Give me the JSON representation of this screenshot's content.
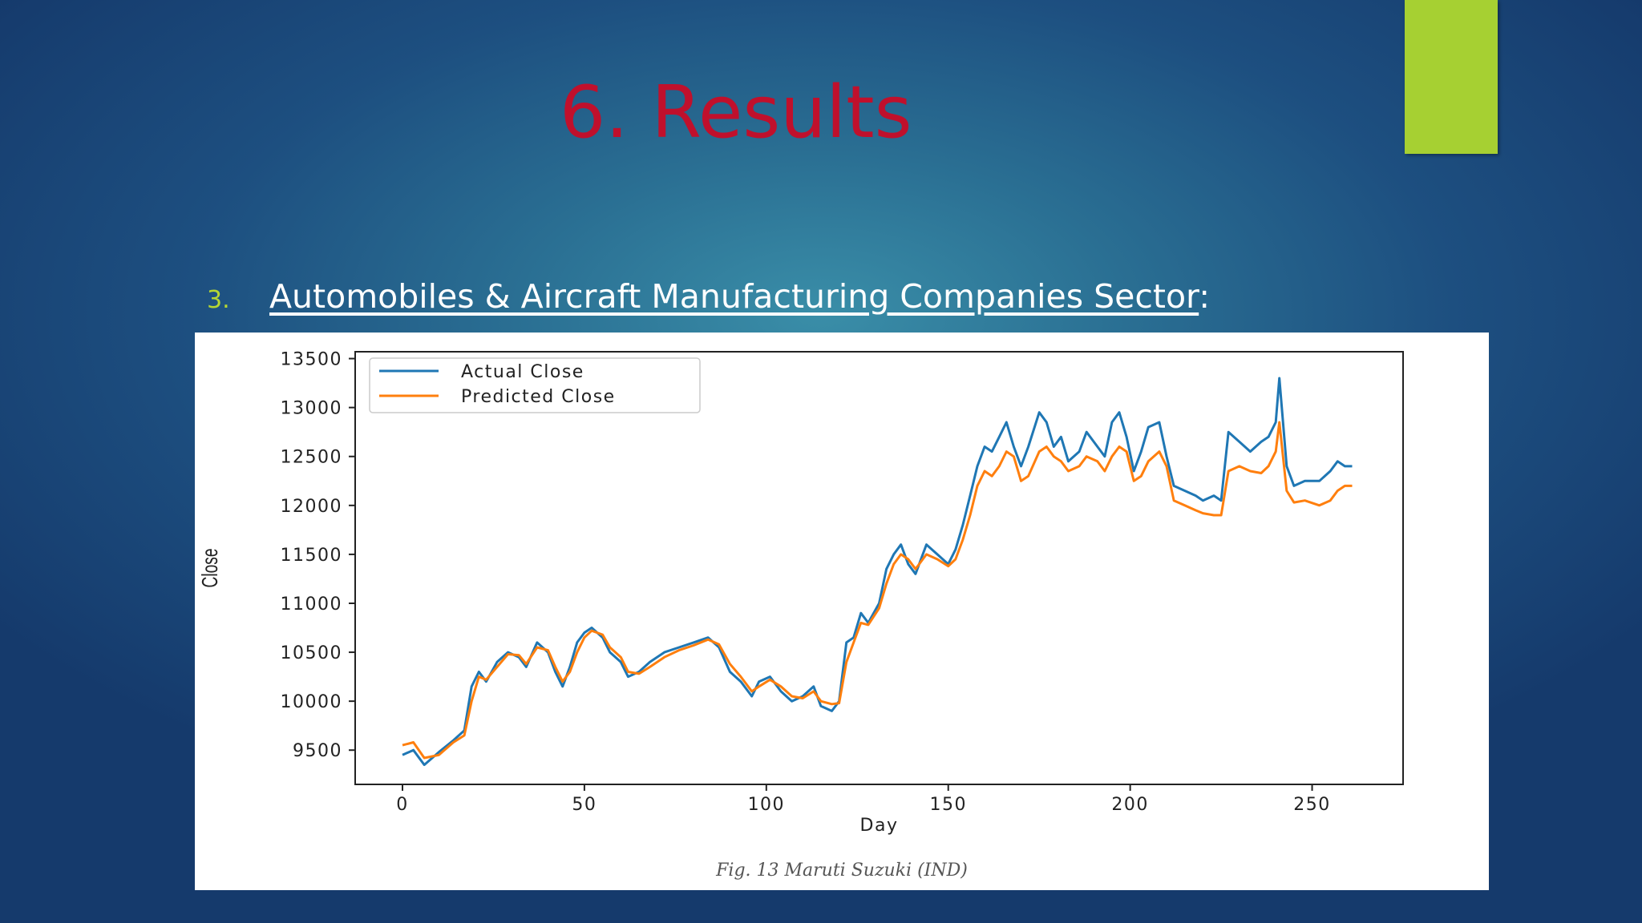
{
  "slide": {
    "title": "6. Results",
    "bullet_number": "3.",
    "bullet_text": "Automobiles & Aircraft Manufacturing Companies Sector",
    "bullet_suffix": ":",
    "caption": "Fig. 13 Maruti Suzuki (IND)",
    "accent_color": "#a6d032",
    "title_color": "#c0102c"
  },
  "chart_data": {
    "type": "line",
    "xlabel": "Day",
    "ylabel": "Close",
    "xlim": [
      -13,
      275
    ],
    "ylim": [
      9150,
      13570
    ],
    "xticks": [
      0,
      50,
      100,
      150,
      200,
      250
    ],
    "yticks": [
      9500,
      10000,
      10500,
      11000,
      11500,
      12000,
      12500,
      13000,
      13500
    ],
    "legend": "top-left",
    "grid": false,
    "series": [
      {
        "name": "Actual Close",
        "color": "#1f77b4",
        "points": [
          [
            0,
            9450
          ],
          [
            3,
            9500
          ],
          [
            6,
            9350
          ],
          [
            10,
            9480
          ],
          [
            14,
            9600
          ],
          [
            17,
            9700
          ],
          [
            19,
            10150
          ],
          [
            21,
            10300
          ],
          [
            23,
            10200
          ],
          [
            26,
            10400
          ],
          [
            29,
            10500
          ],
          [
            32,
            10450
          ],
          [
            34,
            10350
          ],
          [
            37,
            10600
          ],
          [
            40,
            10500
          ],
          [
            42,
            10300
          ],
          [
            44,
            10150
          ],
          [
            46,
            10350
          ],
          [
            48,
            10600
          ],
          [
            50,
            10700
          ],
          [
            52,
            10750
          ],
          [
            55,
            10650
          ],
          [
            57,
            10500
          ],
          [
            60,
            10400
          ],
          [
            62,
            10250
          ],
          [
            65,
            10300
          ],
          [
            68,
            10400
          ],
          [
            72,
            10500
          ],
          [
            76,
            10550
          ],
          [
            80,
            10600
          ],
          [
            84,
            10650
          ],
          [
            87,
            10550
          ],
          [
            90,
            10300
          ],
          [
            93,
            10200
          ],
          [
            96,
            10050
          ],
          [
            98,
            10200
          ],
          [
            101,
            10250
          ],
          [
            104,
            10100
          ],
          [
            107,
            10000
          ],
          [
            110,
            10050
          ],
          [
            113,
            10150
          ],
          [
            115,
            9950
          ],
          [
            118,
            9900
          ],
          [
            120,
            10000
          ],
          [
            122,
            10600
          ],
          [
            124,
            10650
          ],
          [
            126,
            10900
          ],
          [
            128,
            10800
          ],
          [
            131,
            11000
          ],
          [
            133,
            11350
          ],
          [
            135,
            11500
          ],
          [
            137,
            11600
          ],
          [
            139,
            11400
          ],
          [
            141,
            11300
          ],
          [
            144,
            11600
          ],
          [
            147,
            11500
          ],
          [
            150,
            11400
          ],
          [
            152,
            11550
          ],
          [
            154,
            11800
          ],
          [
            156,
            12100
          ],
          [
            158,
            12400
          ],
          [
            160,
            12600
          ],
          [
            162,
            12550
          ],
          [
            164,
            12700
          ],
          [
            166,
            12850
          ],
          [
            168,
            12600
          ],
          [
            170,
            12400
          ],
          [
            172,
            12600
          ],
          [
            175,
            12950
          ],
          [
            177,
            12850
          ],
          [
            179,
            12600
          ],
          [
            181,
            12700
          ],
          [
            183,
            12450
          ],
          [
            186,
            12550
          ],
          [
            188,
            12750
          ],
          [
            191,
            12600
          ],
          [
            193,
            12500
          ],
          [
            195,
            12850
          ],
          [
            197,
            12950
          ],
          [
            199,
            12700
          ],
          [
            201,
            12350
          ],
          [
            203,
            12550
          ],
          [
            205,
            12800
          ],
          [
            208,
            12850
          ],
          [
            210,
            12500
          ],
          [
            212,
            12200
          ],
          [
            215,
            12150
          ],
          [
            218,
            12100
          ],
          [
            220,
            12050
          ],
          [
            223,
            12100
          ],
          [
            225,
            12050
          ],
          [
            227,
            12750
          ],
          [
            230,
            12650
          ],
          [
            233,
            12550
          ],
          [
            236,
            12650
          ],
          [
            238,
            12700
          ],
          [
            240,
            12850
          ],
          [
            241,
            13300
          ],
          [
            243,
            12400
          ],
          [
            245,
            12200
          ],
          [
            248,
            12250
          ],
          [
            252,
            12250
          ],
          [
            255,
            12350
          ],
          [
            257,
            12450
          ],
          [
            259,
            12400
          ],
          [
            261,
            12400
          ]
        ]
      },
      {
        "name": "Predicted Close",
        "color": "#ff7f0e",
        "points": [
          [
            0,
            9550
          ],
          [
            3,
            9580
          ],
          [
            6,
            9420
          ],
          [
            10,
            9450
          ],
          [
            14,
            9580
          ],
          [
            17,
            9650
          ],
          [
            19,
            10000
          ],
          [
            21,
            10250
          ],
          [
            23,
            10220
          ],
          [
            26,
            10350
          ],
          [
            29,
            10480
          ],
          [
            32,
            10470
          ],
          [
            34,
            10380
          ],
          [
            37,
            10550
          ],
          [
            40,
            10520
          ],
          [
            42,
            10350
          ],
          [
            44,
            10200
          ],
          [
            46,
            10300
          ],
          [
            48,
            10500
          ],
          [
            50,
            10650
          ],
          [
            52,
            10720
          ],
          [
            55,
            10680
          ],
          [
            57,
            10550
          ],
          [
            60,
            10450
          ],
          [
            62,
            10300
          ],
          [
            65,
            10280
          ],
          [
            68,
            10350
          ],
          [
            72,
            10450
          ],
          [
            76,
            10520
          ],
          [
            80,
            10570
          ],
          [
            84,
            10630
          ],
          [
            87,
            10580
          ],
          [
            90,
            10380
          ],
          [
            93,
            10250
          ],
          [
            96,
            10100
          ],
          [
            98,
            10150
          ],
          [
            101,
            10220
          ],
          [
            104,
            10150
          ],
          [
            107,
            10050
          ],
          [
            110,
            10030
          ],
          [
            113,
            10100
          ],
          [
            115,
            10000
          ],
          [
            118,
            9970
          ],
          [
            120,
            9980
          ],
          [
            122,
            10400
          ],
          [
            124,
            10600
          ],
          [
            126,
            10800
          ],
          [
            128,
            10780
          ],
          [
            131,
            10950
          ],
          [
            133,
            11200
          ],
          [
            135,
            11400
          ],
          [
            137,
            11500
          ],
          [
            139,
            11450
          ],
          [
            141,
            11350
          ],
          [
            144,
            11500
          ],
          [
            147,
            11450
          ],
          [
            150,
            11380
          ],
          [
            152,
            11450
          ],
          [
            154,
            11650
          ],
          [
            156,
            11900
          ],
          [
            158,
            12200
          ],
          [
            160,
            12350
          ],
          [
            162,
            12300
          ],
          [
            164,
            12400
          ],
          [
            166,
            12550
          ],
          [
            168,
            12500
          ],
          [
            170,
            12250
          ],
          [
            172,
            12300
          ],
          [
            175,
            12550
          ],
          [
            177,
            12600
          ],
          [
            179,
            12500
          ],
          [
            181,
            12450
          ],
          [
            183,
            12350
          ],
          [
            186,
            12400
          ],
          [
            188,
            12500
          ],
          [
            191,
            12450
          ],
          [
            193,
            12350
          ],
          [
            195,
            12500
          ],
          [
            197,
            12600
          ],
          [
            199,
            12550
          ],
          [
            201,
            12250
          ],
          [
            203,
            12300
          ],
          [
            205,
            12450
          ],
          [
            208,
            12550
          ],
          [
            210,
            12400
          ],
          [
            212,
            12050
          ],
          [
            215,
            12000
          ],
          [
            218,
            11950
          ],
          [
            220,
            11920
          ],
          [
            223,
            11900
          ],
          [
            225,
            11900
          ],
          [
            227,
            12350
          ],
          [
            230,
            12400
          ],
          [
            233,
            12350
          ],
          [
            236,
            12330
          ],
          [
            238,
            12400
          ],
          [
            240,
            12550
          ],
          [
            241,
            12850
          ],
          [
            243,
            12150
          ],
          [
            245,
            12030
          ],
          [
            248,
            12050
          ],
          [
            252,
            12000
          ],
          [
            255,
            12050
          ],
          [
            257,
            12150
          ],
          [
            259,
            12200
          ],
          [
            261,
            12200
          ]
        ]
      }
    ]
  }
}
